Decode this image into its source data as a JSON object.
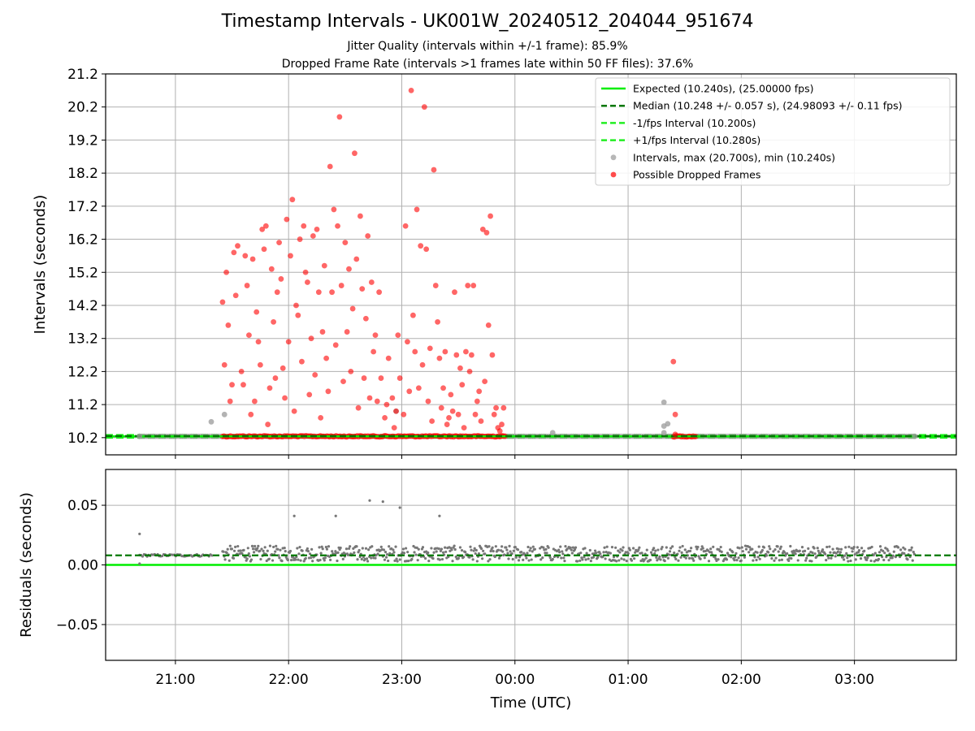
{
  "title": "Timestamp Intervals - UK001W_20240512_204044_951674",
  "subtitle1": "Jitter Quality (intervals within +/-1 frame): 85.9%",
  "subtitle2": "Dropped Frame Rate (intervals >1 frames late within 50 FF files): 37.6%",
  "colors": {
    "expected": "#00ee00",
    "median": "#007700",
    "interval_band": "#22ee22",
    "intervals_point": "#999999",
    "dropped_point": "#ff0000",
    "residual_point": "#777777",
    "grid": "#b0b0b0"
  },
  "chart_data": [
    {
      "type": "scatter",
      "panel": "top",
      "xlabel": "",
      "ylabel": "Intervals (seconds)",
      "x_range_hours": [
        "20:23",
        "03:54"
      ],
      "ylim": [
        9.68,
        21.2
      ],
      "yticks": [
        10.2,
        11.2,
        12.2,
        13.2,
        14.2,
        15.2,
        16.2,
        17.2,
        18.2,
        19.2,
        20.2,
        21.2
      ],
      "ytick_labels": [
        "10.2",
        "11.2",
        "12.2",
        "13.2",
        "14.2",
        "15.2",
        "16.2",
        "17.2",
        "18.2",
        "19.2",
        "20.2",
        "21.2"
      ],
      "grid": true,
      "legend_position": "top-right",
      "legend": [
        "Expected (10.240s), (25.00000 fps)",
        "Median (10.248 +/- 0.057 s), (24.98093 +/- 0.11 fps)",
        "-1/fps Interval (10.200s)",
        "+1/fps Interval (10.280s)",
        "Intervals, max (20.700s), min (10.240s)",
        "Possible Dropped Frames"
      ],
      "lines": {
        "expected": 10.24,
        "median": 10.248,
        "minus_one_frame": 10.2,
        "plus_one_frame": 10.28
      },
      "series": [
        {
          "name": "Intervals, max (20.700s), min (10.240s)",
          "baseline_value": 10.24,
          "baseline_segments": [
            [
              "20:41",
              "21:25"
            ],
            [
              "23:55",
              "01:24"
            ],
            [
              "01:36",
              "03:32"
            ]
          ],
          "points": [
            [
              "20:41",
              10.24
            ],
            [
              "21:19",
              10.68
            ],
            [
              "21:26",
              10.9
            ],
            [
              "22:57",
              11.0
            ],
            [
              "00:20",
              10.35
            ],
            [
              "01:19",
              10.35
            ],
            [
              "01:19",
              10.55
            ],
            [
              "01:19",
              11.27
            ],
            [
              "01:21",
              10.62
            ],
            [
              "03:32",
              10.24
            ]
          ]
        },
        {
          "name": "Possible Dropped Frames",
          "baseline_value": 10.24,
          "baseline_segments": [
            [
              "21:25",
              "23:55"
            ],
            [
              "01:24",
              "01:36"
            ]
          ],
          "points": [
            [
              "21:25",
              14.3
            ],
            [
              "21:26",
              12.4
            ],
            [
              "21:27",
              15.2
            ],
            [
              "21:28",
              13.6
            ],
            [
              "21:29",
              11.3
            ],
            [
              "21:30",
              11.8
            ],
            [
              "21:31",
              15.8
            ],
            [
              "21:32",
              14.5
            ],
            [
              "21:33",
              16.0
            ],
            [
              "21:35",
              12.2
            ],
            [
              "21:36",
              11.8
            ],
            [
              "21:37",
              15.7
            ],
            [
              "21:38",
              14.8
            ],
            [
              "21:39",
              13.3
            ],
            [
              "21:40",
              10.9
            ],
            [
              "21:41",
              15.6
            ],
            [
              "21:42",
              11.3
            ],
            [
              "21:43",
              14.0
            ],
            [
              "21:44",
              13.1
            ],
            [
              "21:45",
              12.4
            ],
            [
              "21:46",
              16.5
            ],
            [
              "21:47",
              15.9
            ],
            [
              "21:48",
              16.6
            ],
            [
              "21:49",
              10.6
            ],
            [
              "21:50",
              11.7
            ],
            [
              "21:51",
              15.3
            ],
            [
              "21:52",
              13.7
            ],
            [
              "21:53",
              12.0
            ],
            [
              "21:54",
              14.6
            ],
            [
              "21:55",
              16.1
            ],
            [
              "21:56",
              15.0
            ],
            [
              "21:57",
              12.3
            ],
            [
              "21:58",
              11.4
            ],
            [
              "21:59",
              16.8
            ],
            [
              "22:00",
              13.1
            ],
            [
              "22:01",
              15.7
            ],
            [
              "22:02",
              17.4
            ],
            [
              "22:03",
              11.0
            ],
            [
              "22:04",
              14.2
            ],
            [
              "22:05",
              13.9
            ],
            [
              "22:06",
              16.2
            ],
            [
              "22:07",
              12.5
            ],
            [
              "22:08",
              16.6
            ],
            [
              "22:09",
              15.2
            ],
            [
              "22:10",
              14.9
            ],
            [
              "22:11",
              11.5
            ],
            [
              "22:12",
              13.2
            ],
            [
              "22:13",
              16.3
            ],
            [
              "22:14",
              12.1
            ],
            [
              "22:15",
              16.5
            ],
            [
              "22:16",
              14.6
            ],
            [
              "22:17",
              10.8
            ],
            [
              "22:18",
              13.4
            ],
            [
              "22:19",
              15.4
            ],
            [
              "22:20",
              12.6
            ],
            [
              "22:21",
              11.6
            ],
            [
              "22:22",
              18.4
            ],
            [
              "22:23",
              14.6
            ],
            [
              "22:24",
              17.1
            ],
            [
              "22:25",
              13.0
            ],
            [
              "22:26",
              16.6
            ],
            [
              "22:27",
              19.9
            ],
            [
              "22:28",
              14.8
            ],
            [
              "22:29",
              11.9
            ],
            [
              "22:30",
              16.1
            ],
            [
              "22:31",
              13.4
            ],
            [
              "22:32",
              15.3
            ],
            [
              "22:33",
              12.2
            ],
            [
              "22:34",
              14.1
            ],
            [
              "22:35",
              18.8
            ],
            [
              "22:36",
              15.6
            ],
            [
              "22:37",
              11.1
            ],
            [
              "22:38",
              16.9
            ],
            [
              "22:39",
              14.7
            ],
            [
              "22:40",
              12.0
            ],
            [
              "22:41",
              13.8
            ],
            [
              "22:42",
              16.3
            ],
            [
              "22:43",
              11.4
            ],
            [
              "22:44",
              14.9
            ],
            [
              "22:45",
              12.8
            ],
            [
              "22:46",
              13.3
            ],
            [
              "22:47",
              11.3
            ],
            [
              "22:48",
              14.6
            ],
            [
              "22:49",
              12.0
            ],
            [
              "22:51",
              10.8
            ],
            [
              "22:52",
              11.2
            ],
            [
              "22:53",
              12.6
            ],
            [
              "22:55",
              11.4
            ],
            [
              "22:56",
              10.5
            ],
            [
              "22:57",
              11.0
            ],
            [
              "22:58",
              13.3
            ],
            [
              "22:59",
              12.0
            ],
            [
              "23:01",
              10.9
            ],
            [
              "23:02",
              16.6
            ],
            [
              "23:03",
              13.1
            ],
            [
              "23:04",
              11.6
            ],
            [
              "23:05",
              20.7
            ],
            [
              "23:06",
              13.9
            ],
            [
              "23:07",
              12.8
            ],
            [
              "23:08",
              17.1
            ],
            [
              "23:09",
              11.7
            ],
            [
              "23:10",
              16.0
            ],
            [
              "23:11",
              12.4
            ],
            [
              "23:12",
              20.2
            ],
            [
              "23:13",
              15.9
            ],
            [
              "23:14",
              11.3
            ],
            [
              "23:15",
              12.9
            ],
            [
              "23:16",
              10.7
            ],
            [
              "23:17",
              18.3
            ],
            [
              "23:18",
              14.8
            ],
            [
              "23:19",
              13.7
            ],
            [
              "23:20",
              12.6
            ],
            [
              "23:21",
              11.1
            ],
            [
              "23:22",
              11.7
            ],
            [
              "23:23",
              12.8
            ],
            [
              "23:24",
              10.6
            ],
            [
              "23:25",
              10.8
            ],
            [
              "23:26",
              11.5
            ],
            [
              "23:27",
              11.0
            ],
            [
              "23:28",
              14.6
            ],
            [
              "23:29",
              12.7
            ],
            [
              "23:30",
              10.9
            ],
            [
              "23:31",
              12.3
            ],
            [
              "23:32",
              11.8
            ],
            [
              "23:33",
              10.5
            ],
            [
              "23:34",
              12.8
            ],
            [
              "23:35",
              14.8
            ],
            [
              "23:36",
              12.2
            ],
            [
              "23:37",
              12.7
            ],
            [
              "23:38",
              14.8
            ],
            [
              "23:39",
              10.9
            ],
            [
              "23:40",
              11.3
            ],
            [
              "23:41",
              11.6
            ],
            [
              "23:42",
              10.7
            ],
            [
              "23:43",
              16.5
            ],
            [
              "23:44",
              11.9
            ],
            [
              "23:45",
              16.4
            ],
            [
              "23:46",
              13.6
            ],
            [
              "23:47",
              16.9
            ],
            [
              "23:48",
              12.7
            ],
            [
              "23:49",
              10.9
            ],
            [
              "23:50",
              11.1
            ],
            [
              "23:51",
              10.5
            ],
            [
              "23:52",
              10.4
            ],
            [
              "23:53",
              10.6
            ],
            [
              "23:54",
              11.1
            ],
            [
              "01:24",
              12.5
            ],
            [
              "01:25",
              10.9
            ],
            [
              "01:25",
              10.3
            ]
          ]
        }
      ]
    },
    {
      "type": "scatter",
      "panel": "bottom",
      "xlabel": "Time (UTC)",
      "ylabel": "Residuals (seconds)",
      "ylim": [
        -0.08,
        0.08
      ],
      "yticks": [
        -0.05,
        0.0,
        0.05
      ],
      "ytick_labels": [
        "−0.05",
        "0.00",
        "0.05"
      ],
      "xticks": [
        "21:00",
        "22:00",
        "23:00",
        "00:00",
        "01:00",
        "02:00",
        "03:00"
      ],
      "grid": true,
      "lines": {
        "zero": 0.0,
        "median": 0.008
      },
      "series": [
        {
          "name": "",
          "band": {
            "from": "21:25",
            "to": "03:32",
            "min": 0.003,
            "max": 0.016
          },
          "early_band": {
            "from": "20:41",
            "to": "21:20",
            "value": 0.008
          },
          "outliers": [
            [
              "20:41",
              0.026
            ],
            [
              "20:41",
              0.001
            ],
            [
              "22:03",
              0.041
            ],
            [
              "22:25",
              0.041
            ],
            [
              "22:43",
              0.054
            ],
            [
              "22:50",
              0.053
            ],
            [
              "22:59",
              0.048
            ],
            [
              "23:20",
              0.041
            ]
          ]
        }
      ]
    }
  ]
}
